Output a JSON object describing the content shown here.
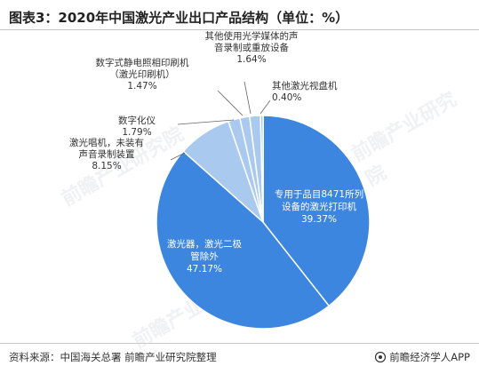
{
  "title": "图表3：2020年中国激光产业出口产品结构（单位：%）",
  "footer": {
    "source": "资料来源：中国海关总署 前瞻产业研究院整理",
    "brand": "前瞻经济学人APP"
  },
  "colors": {
    "dark": "#3d86e0",
    "light": "#aac9ef",
    "leader": "#666666"
  },
  "chart_data": {
    "type": "pie",
    "title": "图表3：2020年中国激光产业出口产品结构（单位：%）",
    "slices": [
      {
        "lines": [
          "专用于品目8471所列",
          "设备的激光打印机"
        ],
        "value": 39.37,
        "label_pos": "inside"
      },
      {
        "lines": [
          "激光器，激光二极",
          "管除外"
        ],
        "value": 47.17,
        "label_pos": "inside"
      },
      {
        "lines": [
          "激光唱机，未装有",
          "声音录制装置"
        ],
        "value": 8.15,
        "label_pos": "outside"
      },
      {
        "lines": [
          "数字化仪"
        ],
        "value": 1.79,
        "label_pos": "outside"
      },
      {
        "lines": [
          "数字式静电照相印刷机",
          "（激光印刷机）"
        ],
        "value": 1.47,
        "label_pos": "outside"
      },
      {
        "lines": [
          "其他使用光学媒体的声",
          "音录制或重放设备"
        ],
        "value": 1.64,
        "label_pos": "outside"
      },
      {
        "lines": [
          "其他激光视盘机"
        ],
        "value": 0.4,
        "label_pos": "outside"
      }
    ]
  }
}
